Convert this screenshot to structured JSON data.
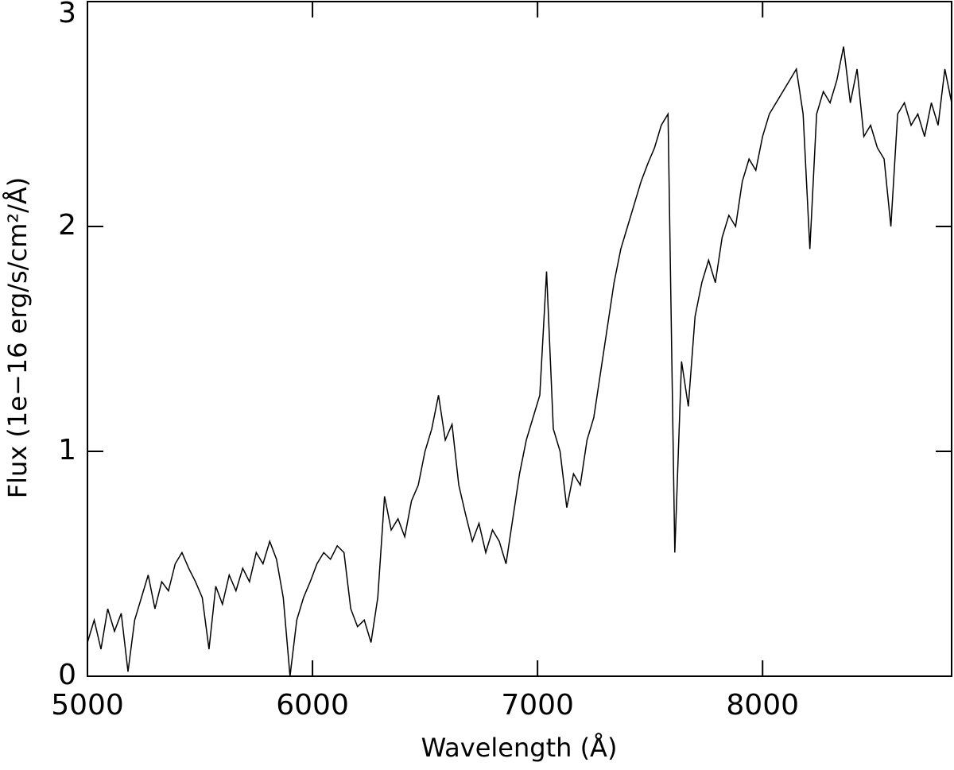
{
  "chart_data": {
    "type": "line",
    "xlabel": "Wavelength (Å)",
    "ylabel": "Flux (1e−16 erg/s/cm²/Å)",
    "xlim": [
      5000,
      8840
    ],
    "ylim": [
      0,
      3
    ],
    "xticks": [
      5000,
      6000,
      7000,
      8000
    ],
    "yticks": [
      0,
      1,
      2,
      3
    ],
    "color": "#000000",
    "x": [
      5000,
      5030,
      5060,
      5090,
      5120,
      5150,
      5180,
      5210,
      5240,
      5270,
      5300,
      5330,
      5360,
      5390,
      5420,
      5450,
      5480,
      5510,
      5540,
      5570,
      5600,
      5630,
      5660,
      5690,
      5720,
      5750,
      5780,
      5810,
      5840,
      5870,
      5900,
      5930,
      5960,
      5990,
      6020,
      6050,
      6080,
      6110,
      6140,
      6170,
      6200,
      6230,
      6260,
      6290,
      6320,
      6350,
      6380,
      6410,
      6440,
      6470,
      6500,
      6530,
      6560,
      6590,
      6620,
      6650,
      6680,
      6710,
      6740,
      6770,
      6800,
      6830,
      6860,
      6890,
      6920,
      6950,
      6980,
      7010,
      7040,
      7070,
      7100,
      7130,
      7160,
      7190,
      7220,
      7250,
      7280,
      7310,
      7340,
      7370,
      7400,
      7430,
      7460,
      7490,
      7520,
      7550,
      7580,
      7610,
      7640,
      7670,
      7700,
      7730,
      7760,
      7790,
      7820,
      7850,
      7880,
      7910,
      7940,
      7970,
      8000,
      8030,
      8060,
      8090,
      8120,
      8150,
      8180,
      8210,
      8240,
      8270,
      8300,
      8330,
      8360,
      8390,
      8420,
      8450,
      8480,
      8510,
      8540,
      8570,
      8600,
      8630,
      8660,
      8690,
      8720,
      8750,
      8780,
      8810,
      8840
    ],
    "values": [
      0.15,
      0.25,
      0.12,
      0.3,
      0.2,
      0.28,
      0.02,
      0.25,
      0.35,
      0.45,
      0.3,
      0.42,
      0.38,
      0.5,
      0.55,
      0.48,
      0.42,
      0.35,
      0.12,
      0.4,
      0.32,
      0.45,
      0.38,
      0.48,
      0.42,
      0.55,
      0.5,
      0.6,
      0.52,
      0.35,
      0.0,
      0.25,
      0.35,
      0.42,
      0.5,
      0.55,
      0.52,
      0.58,
      0.55,
      0.3,
      0.22,
      0.25,
      0.15,
      0.35,
      0.8,
      0.65,
      0.7,
      0.62,
      0.78,
      0.85,
      1.0,
      1.1,
      1.25,
      1.05,
      1.12,
      0.85,
      0.72,
      0.6,
      0.68,
      0.55,
      0.65,
      0.6,
      0.5,
      0.7,
      0.9,
      1.05,
      1.15,
      1.25,
      1.8,
      1.1,
      1.0,
      0.75,
      0.9,
      0.85,
      1.05,
      1.15,
      1.35,
      1.55,
      1.75,
      1.9,
      2.0,
      2.1,
      2.2,
      2.28,
      2.35,
      2.45,
      2.5,
      0.55,
      1.4,
      1.2,
      1.6,
      1.75,
      1.85,
      1.75,
      1.95,
      2.05,
      2.0,
      2.2,
      2.3,
      2.25,
      2.4,
      2.5,
      2.55,
      2.6,
      2.65,
      2.7,
      2.5,
      1.9,
      2.5,
      2.6,
      2.55,
      2.65,
      2.8,
      2.55,
      2.7,
      2.4,
      2.45,
      2.35,
      2.3,
      2.0,
      2.5,
      2.55,
      2.45,
      2.5,
      2.4,
      2.55,
      2.45,
      2.7,
      2.55
    ]
  }
}
